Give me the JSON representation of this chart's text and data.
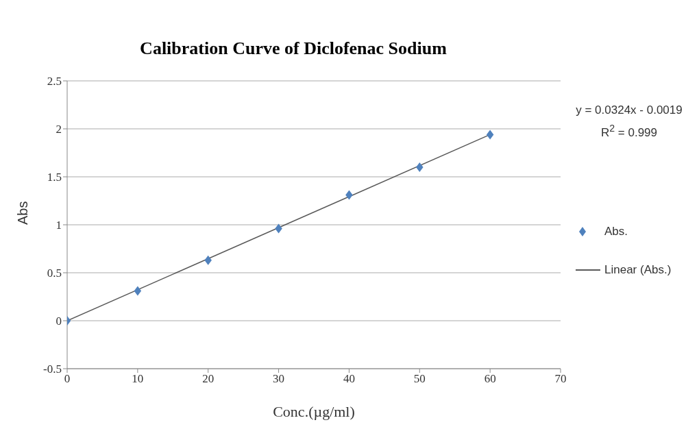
{
  "chart_data": {
    "type": "scatter",
    "title": "Calibration Curve of Diclofenac Sodium",
    "xlabel": "Conc.(µg/ml)",
    "ylabel": "Abs",
    "x": [
      0,
      10,
      20,
      30,
      40,
      50,
      60
    ],
    "series": [
      {
        "name": "Abs.",
        "color": "#4f81bd",
        "marker": "diamond",
        "values": [
          0,
          0.31,
          0.63,
          0.96,
          1.31,
          1.6,
          1.94
        ]
      },
      {
        "name": "Linear (Abs.)",
        "type": "line",
        "color": "#595959",
        "marker": "none",
        "x": [
          0,
          60
        ],
        "values": [
          0,
          1.94
        ]
      }
    ],
    "xlim": [
      0,
      70
    ],
    "xticks": [
      0,
      10,
      20,
      30,
      40,
      50,
      60,
      70
    ],
    "ylim": [
      -0.5,
      2.5
    ],
    "yticks": [
      -0.5,
      0,
      0.5,
      1,
      1.5,
      2,
      2.5
    ],
    "grid": "y",
    "legend": "right",
    "annotations": [
      "y = 0.0324x - 0.0019",
      "R$^{2}$ = 0.999"
    ]
  }
}
